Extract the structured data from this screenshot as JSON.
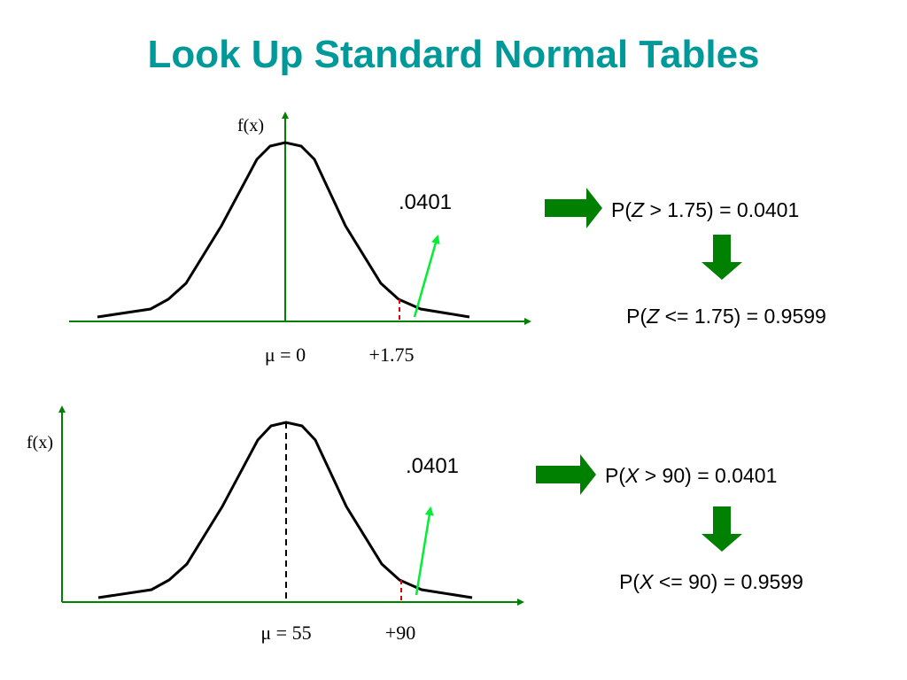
{
  "title": "Look Up Standard Normal Tables",
  "panels": [
    {
      "y_label": "f(x)",
      "mean_label": "μ = 0",
      "cut_label": "+1.75",
      "area_label": ".0401",
      "upper": {
        "prefix": "P(",
        "var": "Z",
        "rest": " > 1.75) = 0.0401"
      },
      "lower": {
        "prefix": "P(",
        "var": "Z",
        "rest": " <= 1.75) = 0.9599"
      }
    },
    {
      "y_label": "f(x)",
      "mean_label": "μ = 55",
      "cut_label": "+90",
      "area_label": ".0401",
      "upper": {
        "prefix": "P(",
        "var": "X",
        "rest": " > 90) = 0.0401"
      },
      "lower": {
        "prefix": "P(",
        "var": "X",
        "rest": " <= 90) = 0.9599"
      }
    }
  ]
}
